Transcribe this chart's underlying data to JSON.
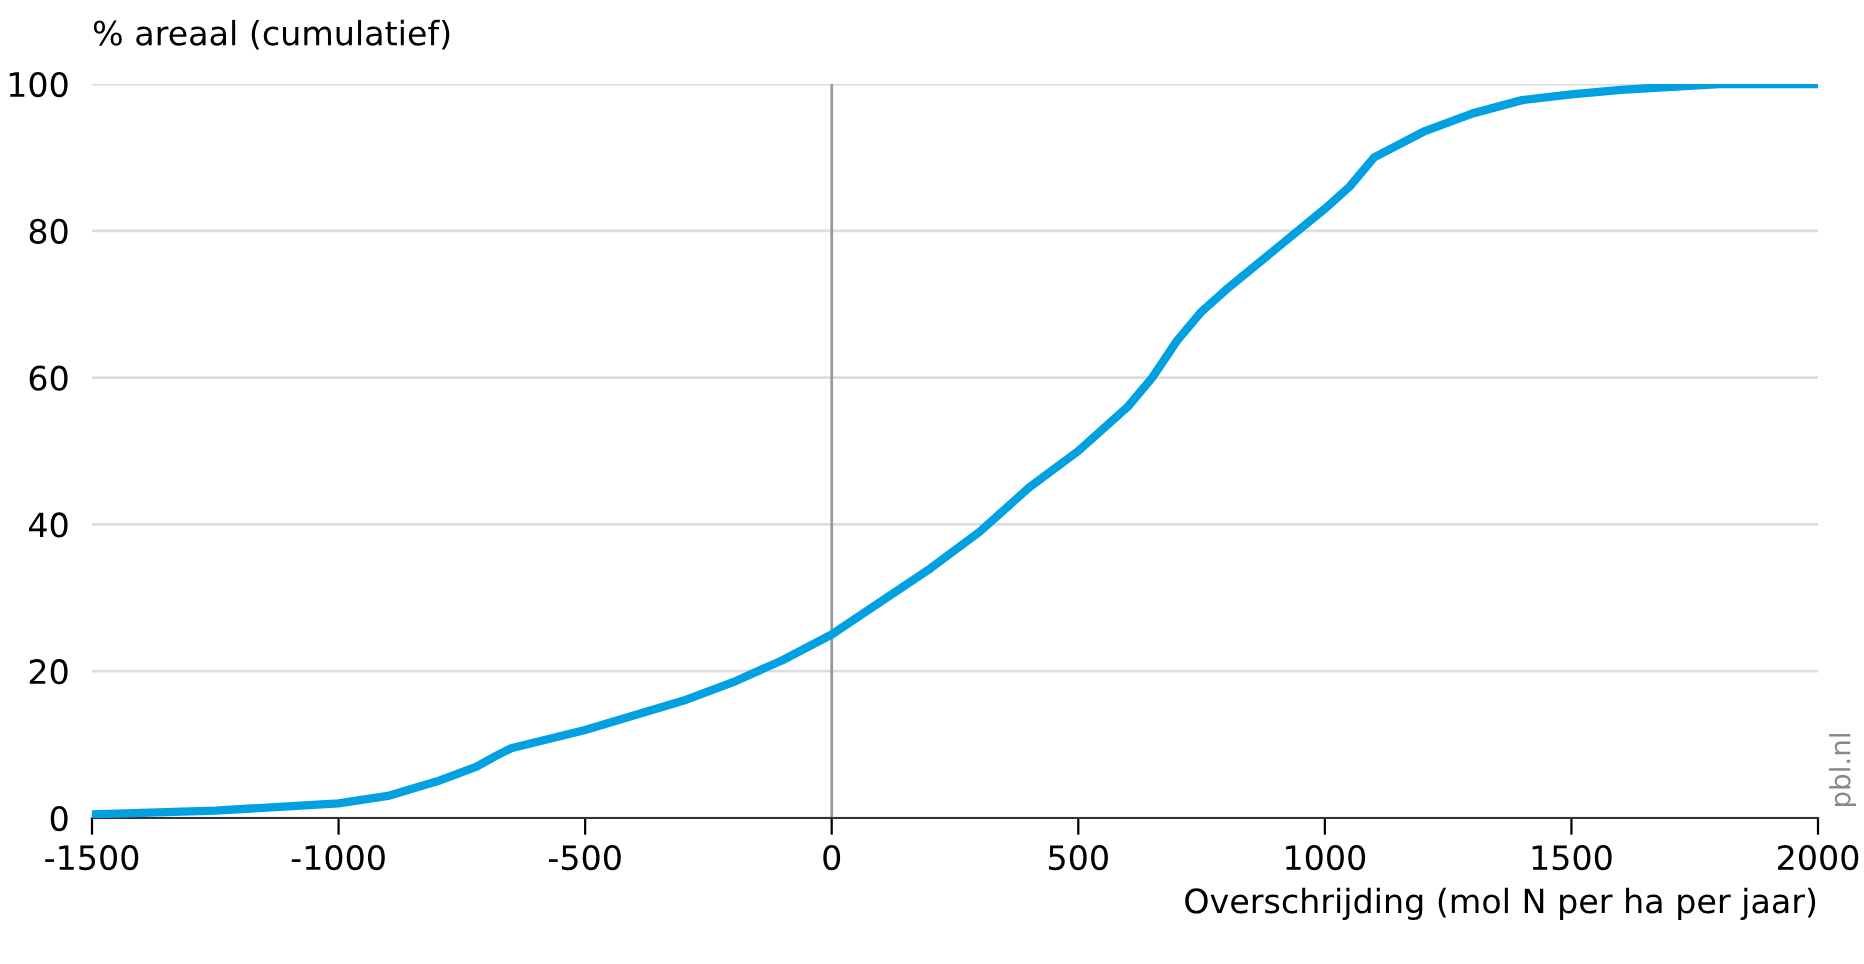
{
  "chart_data": {
    "type": "line",
    "ylabel": "% areaal (cumulatief)",
    "xlabel": "Overschrijding (mol N per ha per jaar)",
    "annotations": [
      "pbl.nl"
    ],
    "x": [
      -1500,
      -1250,
      -1000,
      -900,
      -800,
      -720,
      -680,
      -650,
      -500,
      -300,
      -200,
      -100,
      0,
      100,
      200,
      300,
      400,
      500,
      600,
      650,
      700,
      750,
      800,
      900,
      1000,
      1050,
      1100,
      1200,
      1300,
      1400,
      1500,
      1600,
      1800,
      2000
    ],
    "series": [
      {
        "color": "#00a0e1",
        "values": [
          0.5,
          1,
          2,
          3,
          5,
          7,
          8.5,
          9.5,
          12,
          16,
          18.5,
          21.5,
          25,
          29.5,
          34,
          39,
          45,
          50,
          56,
          60,
          65,
          69,
          72,
          77.5,
          83,
          86,
          90,
          93.5,
          96,
          97.8,
          98.6,
          99.2,
          100,
          100
        ]
      }
    ],
    "xlim": [
      -1500,
      2000
    ],
    "xticks": [
      -1500,
      -1000,
      -500,
      0,
      500,
      1000,
      1500,
      2000
    ],
    "ylim": [
      0,
      100
    ],
    "yticks": [
      0,
      20,
      40,
      60,
      80,
      100
    ],
    "grid": "y",
    "marker": "none",
    "line_style": "solid",
    "ref_lines": [
      {
        "axis": "x",
        "value": 0,
        "color": "#999999"
      }
    ]
  }
}
